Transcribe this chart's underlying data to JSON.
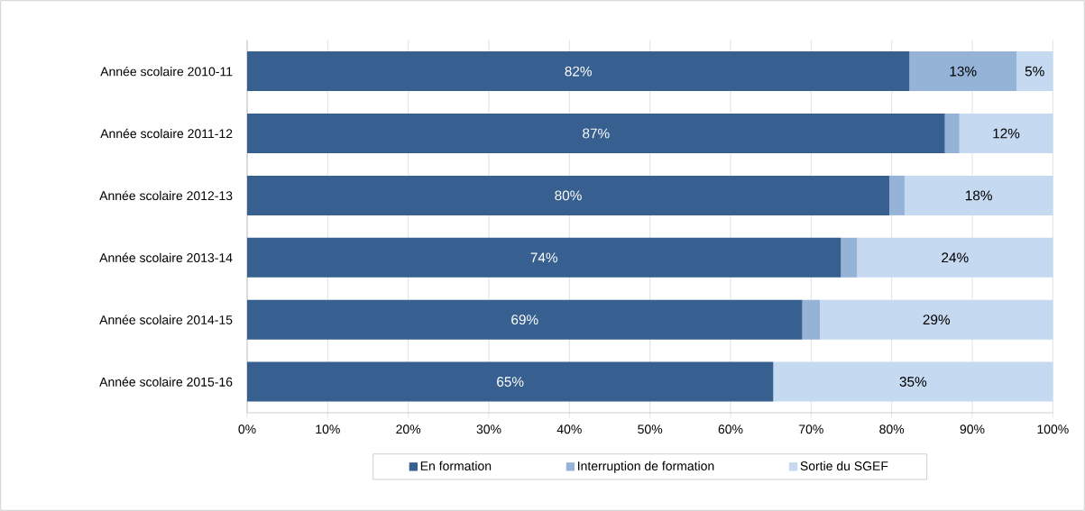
{
  "chart_data": {
    "type": "bar",
    "orientation": "horizontal",
    "stacked": true,
    "categories": [
      "Année scolaire 2010-11",
      "Année scolaire 2011-12",
      "Année scolaire 2012-13",
      "Année scolaire 2013-14",
      "Année scolaire 2014-15",
      "Année scolaire 2015-16"
    ],
    "series": [
      {
        "name": "En formation",
        "color": "#375f8f",
        "values": [
          82.2,
          86.6,
          79.7,
          73.7,
          68.9,
          65.3
        ],
        "value_labels": [
          "82%",
          "87%",
          "80%",
          "74%",
          "69%",
          "65%"
        ]
      },
      {
        "name": "Interruption de formation",
        "color": "#95b3d7",
        "values": [
          13.3,
          1.8,
          1.9,
          2.0,
          2.2,
          0
        ],
        "value_labels": [
          "13%",
          null,
          null,
          null,
          null,
          null
        ]
      },
      {
        "name": "Sortie du SGEF",
        "color": "#c5d9f1",
        "values": [
          4.5,
          11.6,
          18.4,
          24.3,
          28.9,
          34.7
        ],
        "value_labels": [
          "5%",
          "12%",
          "18%",
          "24%",
          "29%",
          "35%"
        ]
      }
    ],
    "xlim": [
      0,
      100
    ],
    "xticks": [
      {
        "value": 0,
        "label": "0%"
      },
      {
        "value": 10,
        "label": "10%"
      },
      {
        "value": 20,
        "label": "20%"
      },
      {
        "value": 30,
        "label": "30%"
      },
      {
        "value": 40,
        "label": "40%"
      },
      {
        "value": 50,
        "label": "50%"
      },
      {
        "value": 60,
        "label": "60%"
      },
      {
        "value": 70,
        "label": "70%"
      },
      {
        "value": 80,
        "label": "80%"
      },
      {
        "value": 90,
        "label": "90%"
      },
      {
        "value": 100,
        "label": "100%"
      }
    ],
    "grid": "x",
    "legend": "bottom"
  }
}
